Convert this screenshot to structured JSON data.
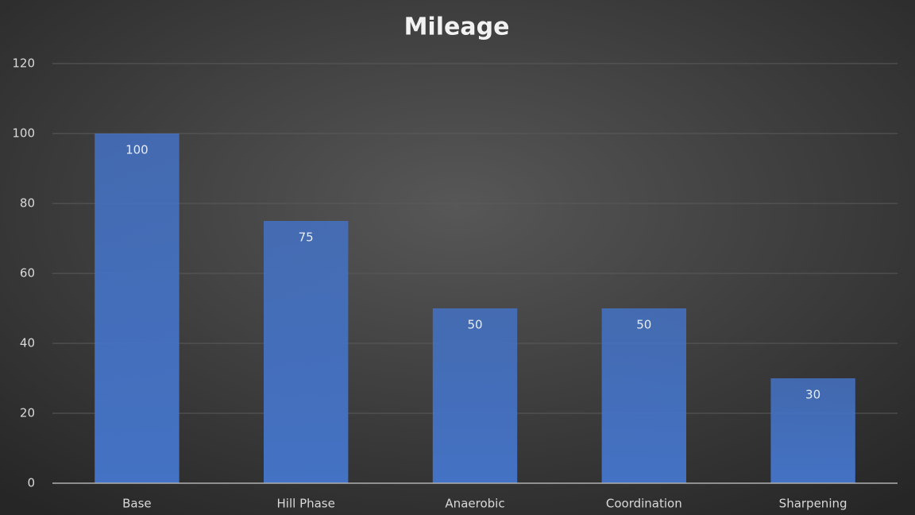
{
  "chart_data": {
    "type": "bar",
    "title": "Mileage",
    "categories": [
      "Base",
      "Hill Phase",
      "Anaerobic",
      "Coordination",
      "Sharpening"
    ],
    "values": [
      100,
      75,
      50,
      50,
      30
    ],
    "color": "#4472c4",
    "ylim": [
      0,
      120
    ],
    "yticks": [
      0,
      20,
      40,
      60,
      80,
      100,
      120
    ],
    "grid": true
  }
}
